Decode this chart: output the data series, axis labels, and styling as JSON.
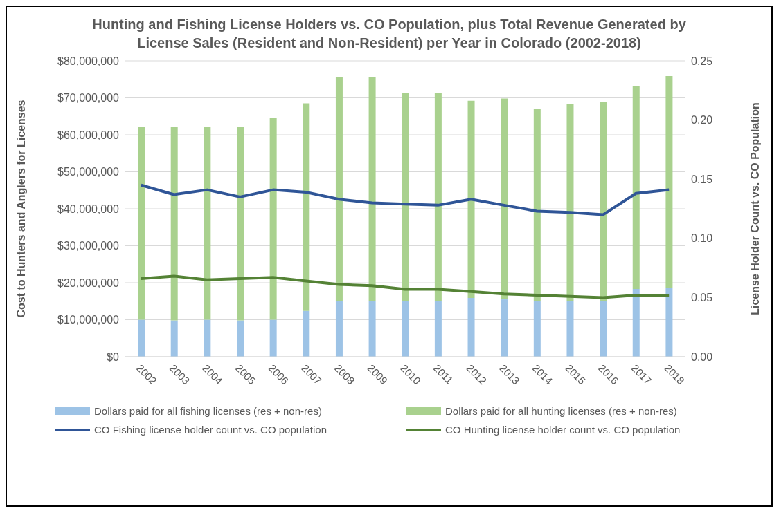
{
  "chart_data": {
    "type": "bar",
    "title": "Hunting and Fishing License Holders vs. CO Population, plus Total Revenue Generated by License Sales (Resident and Non-Resident) per Year in Colorado (2002-2018)",
    "ylabel": "Cost to Hunters and Anglers for Licenses",
    "y2label": "License Holder Count vs. CO Population",
    "categories": [
      "2002",
      "2003",
      "2004",
      "2005",
      "2006",
      "2007",
      "2008",
      "2009",
      "2010",
      "2011",
      "2012",
      "2013",
      "2014",
      "2015",
      "2016",
      "2017",
      "2018"
    ],
    "series": [
      {
        "name": "Dollars paid for all fishing licenses (res + non-res)",
        "color": "#9dc3e6",
        "values": [
          10000000,
          9800000,
          10000000,
          9800000,
          10000000,
          12400000,
          15000000,
          15000000,
          15000000,
          15000000,
          15900000,
          15500000,
          15000000,
          15000000,
          15000000,
          18300000,
          18700000
        ]
      },
      {
        "name": "Dollars paid for all hunting licenses (res + non-res)",
        "color": "#a9d18e",
        "values": [
          52200000,
          52400000,
          52200000,
          52400000,
          54600000,
          56100000,
          60500000,
          60500000,
          56200000,
          56200000,
          53300000,
          54300000,
          51900000,
          53300000,
          53900000,
          54800000,
          57200000
        ]
      },
      {
        "name": "CO Fishing license holder count vs. CO population",
        "color": "#2f5597",
        "type": "line",
        "axis": "y2",
        "values": [
          0.145,
          0.137,
          0.141,
          0.135,
          0.141,
          0.139,
          0.133,
          0.13,
          0.129,
          0.128,
          0.133,
          0.128,
          0.123,
          0.122,
          0.12,
          0.138,
          0.141
        ]
      },
      {
        "name": "CO Hunting license holder count vs. CO population",
        "color": "#548235",
        "type": "line",
        "axis": "y2",
        "values": [
          0.066,
          0.068,
          0.065,
          0.066,
          0.067,
          0.064,
          0.061,
          0.06,
          0.057,
          0.057,
          0.055,
          0.053,
          0.052,
          0.051,
          0.05,
          0.052,
          0.052
        ]
      }
    ],
    "stacked": true,
    "ylim": [
      0,
      80000000
    ],
    "yticks": [
      {
        "value": 0,
        "label": "$0"
      },
      {
        "value": 10000000,
        "label": "$10,000,000"
      },
      {
        "value": 20000000,
        "label": "$20,000,000"
      },
      {
        "value": 30000000,
        "label": "$30,000,000"
      },
      {
        "value": 40000000,
        "label": "$40,000,000"
      },
      {
        "value": 50000000,
        "label": "$50,000,000"
      },
      {
        "value": 60000000,
        "label": "$60,000,000"
      },
      {
        "value": 70000000,
        "label": "$70,000,000"
      },
      {
        "value": 80000000,
        "label": "$80,000,000"
      }
    ],
    "y2lim": [
      0,
      0.25
    ],
    "y2ticks": [
      {
        "value": 0,
        "label": "0.00"
      },
      {
        "value": 0.05,
        "label": "0.05"
      },
      {
        "value": 0.1,
        "label": "0.10"
      },
      {
        "value": 0.15,
        "label": "0.15"
      },
      {
        "value": 0.2,
        "label": "0.20"
      },
      {
        "value": 0.25,
        "label": "0.25"
      }
    ],
    "grid": "y",
    "legend": "bottom",
    "marker": "none",
    "line_style": "solid"
  }
}
